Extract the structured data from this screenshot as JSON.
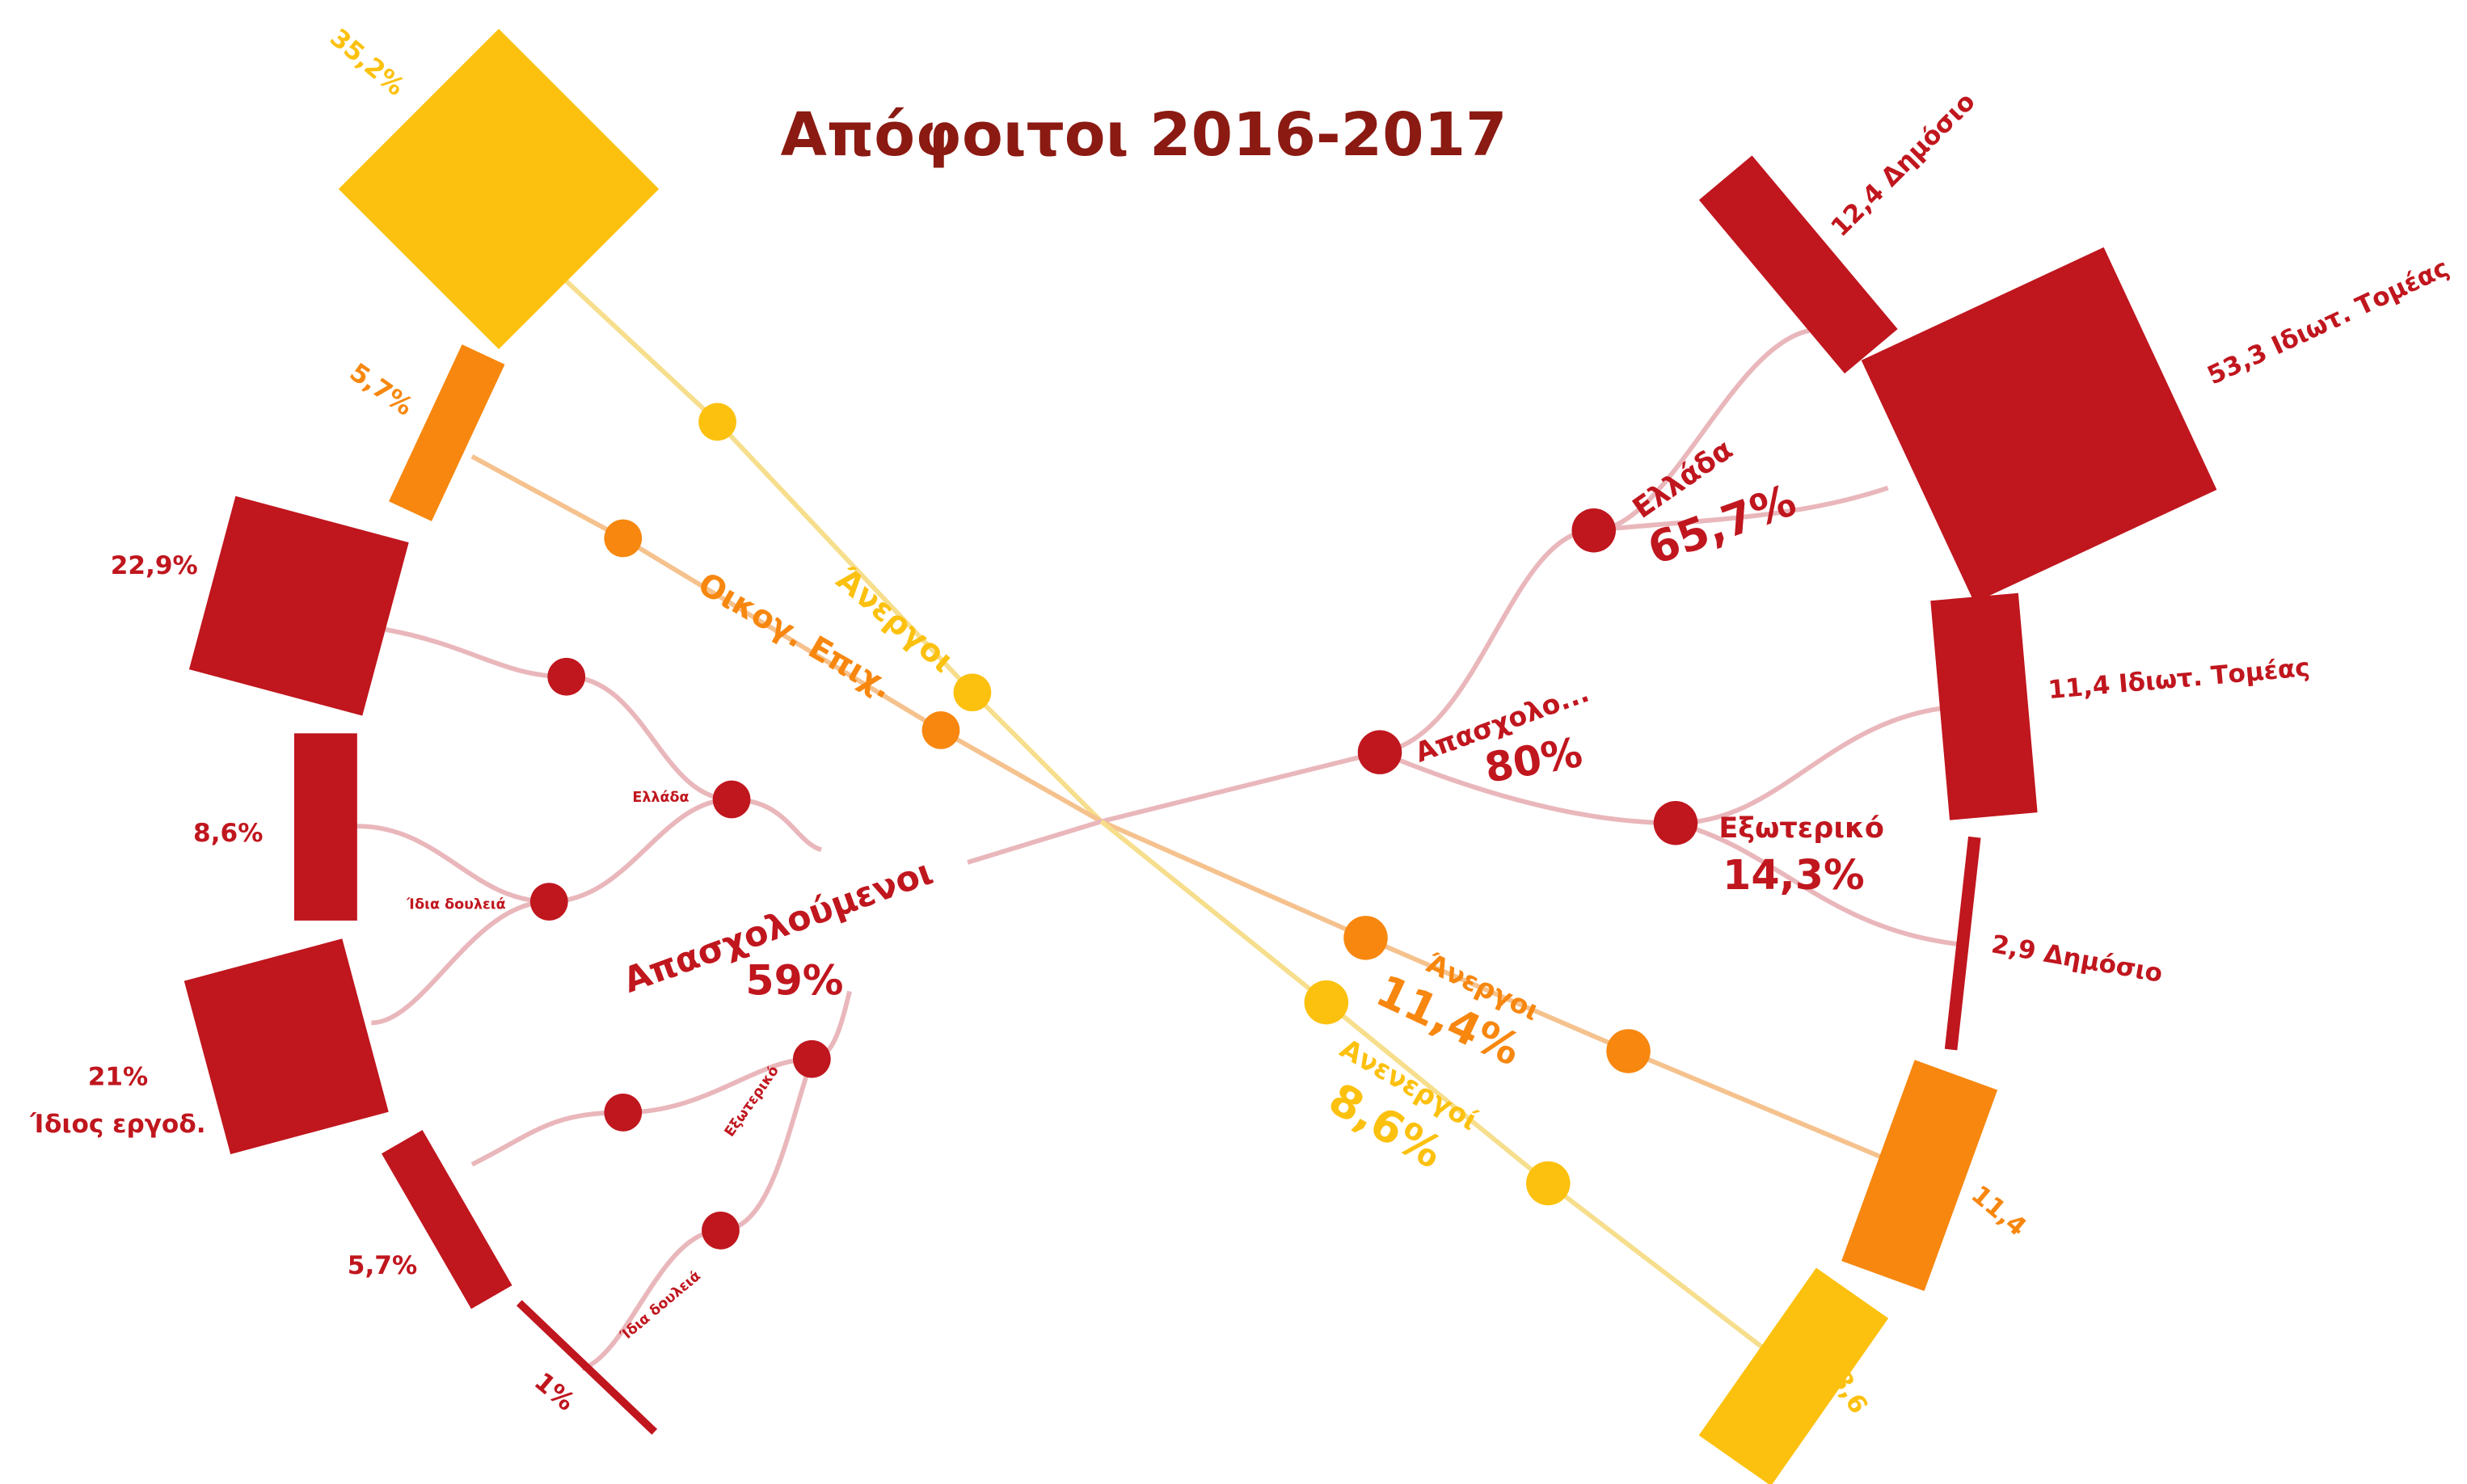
{
  "title": "Απόφοιτοι 2016-2017",
  "labels": [
    "35,2%",
    "5,7%",
    "22,9%",
    "8,6%",
    "21%",
    "Ίδιος εργοδ.",
    "5,7%",
    "1%",
    "Άνεργοι",
    "Οικογ. Επιχ.",
    "Ελλάδα",
    "Ίδια δουλειά",
    "Απασχολούμενοι",
    "59%",
    "Εξωτερικό",
    "Ίδια δουλειά",
    "12,4 Δημόσιο",
    "53,3 Ιδιωτ. Τομέας",
    "Ελλάδα",
    "65,7%",
    "Απασχολο...",
    "80%",
    "11,4 Ιδιωτ. Τομέας",
    "Εξωτερικό",
    "14,3%",
    "2,9 Δημόσιο",
    "Άνεργοι",
    "11,4%",
    "Ανενεργοί",
    "8,6%",
    "11,4",
    "8,6"
  ]
}
